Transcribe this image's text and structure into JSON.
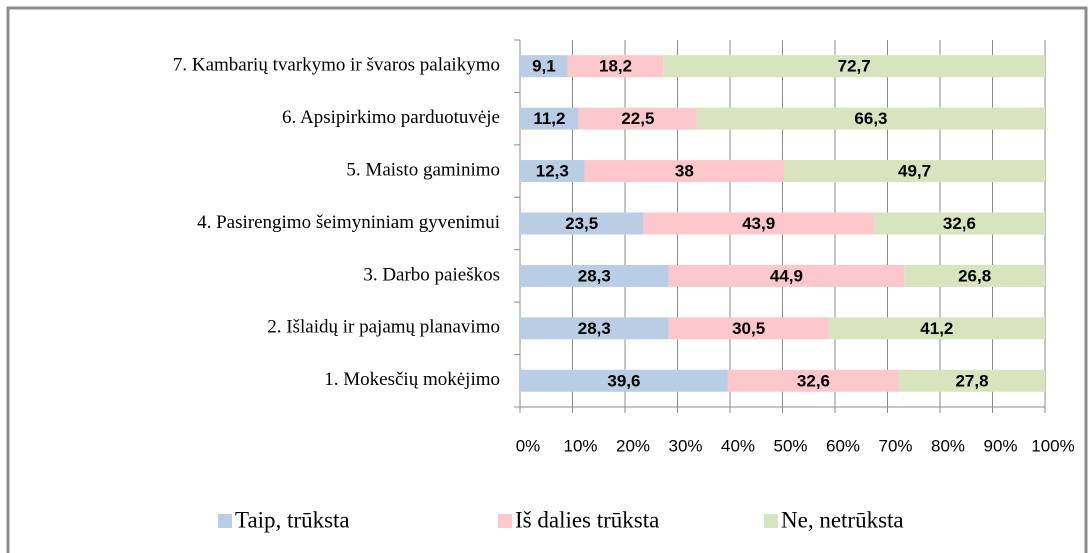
{
  "chart_data": {
    "type": "stacked-bar-horizontal",
    "categories": [
      "7. Kambarių tvarkymo ir švaros palaikymo",
      "6. Apsipirkimo parduotuvėje",
      "5. Maisto gaminimo",
      "4. Pasirengimo šeimyniniam gyvenimui",
      "3. Darbo paieškos",
      "2. Išlaidų ir pajamų planavimo",
      "1. Mokesčių mokėjimo"
    ],
    "series": [
      {
        "name": "Taip, trūksta",
        "color": "#b9cde5",
        "values": [
          9.1,
          11.2,
          12.3,
          23.5,
          28.3,
          28.3,
          39.6
        ],
        "value_labels": [
          "9,1",
          "11,2",
          "12,3",
          "23,5",
          "28,3",
          "28,3",
          "39,6"
        ]
      },
      {
        "name": "Iš dalies trūksta",
        "color": "#fcc8cb",
        "values": [
          18.2,
          22.5,
          38,
          43.9,
          44.9,
          30.5,
          32.6
        ],
        "value_labels": [
          "18,2",
          "22,5",
          "38",
          "43,9",
          "44,9",
          "30,5",
          "32,6"
        ]
      },
      {
        "name": "Ne, netrūksta",
        "color": "#d7e4bd",
        "values": [
          72.7,
          66.3,
          49.7,
          32.6,
          26.8,
          41.2,
          27.8
        ],
        "value_labels": [
          "72,7",
          "66,3",
          "49,7",
          "32,6",
          "26,8",
          "41,2",
          "27,8"
        ]
      }
    ],
    "xlim": [
      0,
      100
    ],
    "xticks": [
      {
        "value": 0,
        "label": "0%"
      },
      {
        "value": 10,
        "label": "10%"
      },
      {
        "value": 20,
        "label": "20%"
      },
      {
        "value": 30,
        "label": "30%"
      },
      {
        "value": 40,
        "label": "40%"
      },
      {
        "value": 50,
        "label": "50%"
      },
      {
        "value": 60,
        "label": "60%"
      },
      {
        "value": 70,
        "label": "70%"
      },
      {
        "value": 80,
        "label": "80%"
      },
      {
        "value": 90,
        "label": "90%"
      },
      {
        "value": 100,
        "label": "100%"
      }
    ],
    "grid": true,
    "legend": "bottom"
  }
}
